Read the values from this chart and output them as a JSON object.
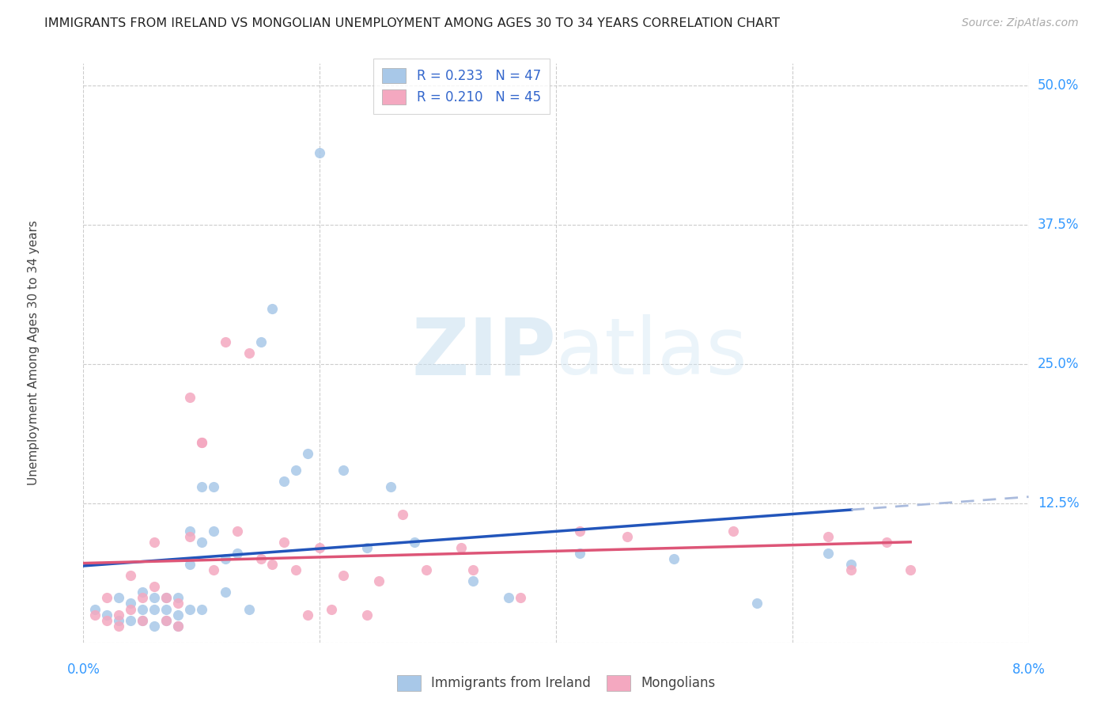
{
  "title": "IMMIGRANTS FROM IRELAND VS MONGOLIAN UNEMPLOYMENT AMONG AGES 30 TO 34 YEARS CORRELATION CHART",
  "source": "Source: ZipAtlas.com",
  "ylabel": "Unemployment Among Ages 30 to 34 years",
  "xlim": [
    0.0,
    0.08
  ],
  "ylim": [
    0.0,
    0.52
  ],
  "yticks": [
    0.0,
    0.125,
    0.25,
    0.375,
    0.5
  ],
  "ytick_labels": [
    "",
    "12.5%",
    "25.0%",
    "37.5%",
    "50.0%"
  ],
  "xticks": [
    0.0,
    0.02,
    0.04,
    0.06,
    0.08
  ],
  "legend_r1": "R = 0.233",
  "legend_n1": "N = 47",
  "legend_r2": "R = 0.210",
  "legend_n2": "N = 45",
  "blue_color": "#a8c8e8",
  "pink_color": "#f4a8c0",
  "line_blue": "#2255bb",
  "line_pink": "#dd5577",
  "blue_x": [
    0.001,
    0.002,
    0.003,
    0.003,
    0.004,
    0.004,
    0.005,
    0.005,
    0.005,
    0.006,
    0.006,
    0.006,
    0.007,
    0.007,
    0.007,
    0.008,
    0.008,
    0.008,
    0.009,
    0.009,
    0.009,
    0.01,
    0.01,
    0.01,
    0.011,
    0.011,
    0.012,
    0.012,
    0.013,
    0.014,
    0.015,
    0.016,
    0.017,
    0.018,
    0.019,
    0.02,
    0.022,
    0.024,
    0.026,
    0.028,
    0.033,
    0.036,
    0.042,
    0.05,
    0.057,
    0.063,
    0.065
  ],
  "blue_y": [
    0.03,
    0.025,
    0.04,
    0.02,
    0.035,
    0.02,
    0.045,
    0.03,
    0.02,
    0.04,
    0.03,
    0.015,
    0.04,
    0.03,
    0.02,
    0.04,
    0.025,
    0.015,
    0.1,
    0.07,
    0.03,
    0.14,
    0.09,
    0.03,
    0.14,
    0.1,
    0.075,
    0.045,
    0.08,
    0.03,
    0.27,
    0.3,
    0.145,
    0.155,
    0.17,
    0.44,
    0.155,
    0.085,
    0.14,
    0.09,
    0.055,
    0.04,
    0.08,
    0.075,
    0.035,
    0.08,
    0.07
  ],
  "pink_x": [
    0.001,
    0.002,
    0.002,
    0.003,
    0.003,
    0.004,
    0.004,
    0.005,
    0.005,
    0.006,
    0.006,
    0.007,
    0.007,
    0.008,
    0.008,
    0.009,
    0.009,
    0.01,
    0.01,
    0.011,
    0.012,
    0.013,
    0.014,
    0.015,
    0.016,
    0.017,
    0.018,
    0.019,
    0.02,
    0.021,
    0.022,
    0.024,
    0.025,
    0.027,
    0.029,
    0.032,
    0.033,
    0.037,
    0.042,
    0.046,
    0.055,
    0.063,
    0.065,
    0.068,
    0.07
  ],
  "pink_y": [
    0.025,
    0.04,
    0.02,
    0.025,
    0.015,
    0.06,
    0.03,
    0.04,
    0.02,
    0.09,
    0.05,
    0.04,
    0.02,
    0.035,
    0.015,
    0.22,
    0.095,
    0.18,
    0.18,
    0.065,
    0.27,
    0.1,
    0.26,
    0.075,
    0.07,
    0.09,
    0.065,
    0.025,
    0.085,
    0.03,
    0.06,
    0.025,
    0.055,
    0.115,
    0.065,
    0.085,
    0.065,
    0.04,
    0.1,
    0.095,
    0.1,
    0.095,
    0.065,
    0.09,
    0.065
  ]
}
